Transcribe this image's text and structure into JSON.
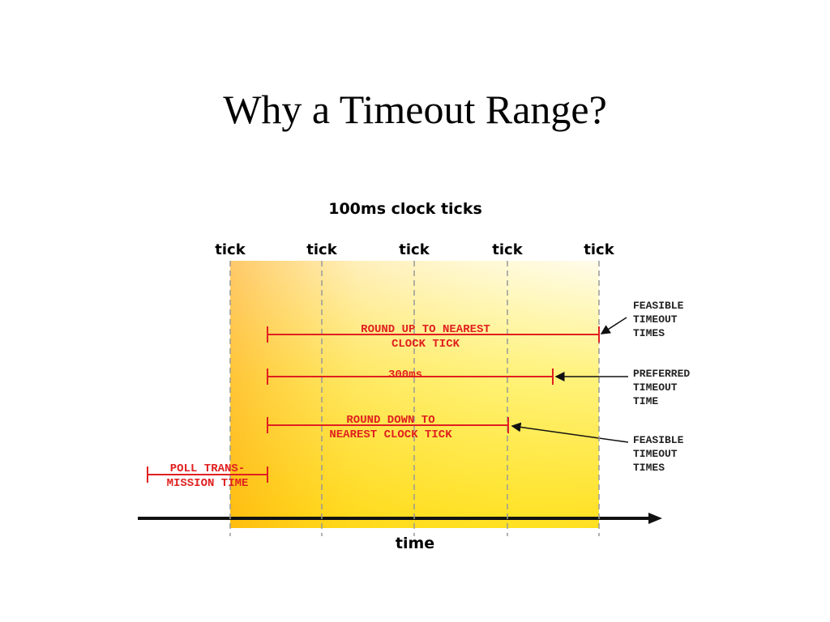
{
  "header": {
    "title": "Why a Timeout Range?"
  },
  "diagram": {
    "title": "100ms clock ticks",
    "ticks": [
      "tick",
      "tick",
      "tick",
      "tick",
      "tick"
    ],
    "axis_label": "time",
    "intervals": [
      {
        "lines": [
          "ROUND UP TO NEAREST",
          "CLOCK TICK"
        ]
      },
      {
        "lines": [
          "300ms"
        ]
      },
      {
        "lines": [
          "ROUND DOWN TO",
          "NEAREST CLOCK TICK"
        ]
      },
      {
        "lines": [
          "POLL TRANS-",
          "MISSION TIME"
        ]
      }
    ],
    "notes": [
      {
        "lines": [
          "FEASIBLE",
          "TIMEOUT",
          "TIMES"
        ]
      },
      {
        "lines": [
          "PREFERRED",
          "TIMEOUT",
          "TIME"
        ]
      },
      {
        "lines": [
          "FEASIBLE",
          "TIMEOUT",
          "TIMES"
        ]
      }
    ]
  }
}
